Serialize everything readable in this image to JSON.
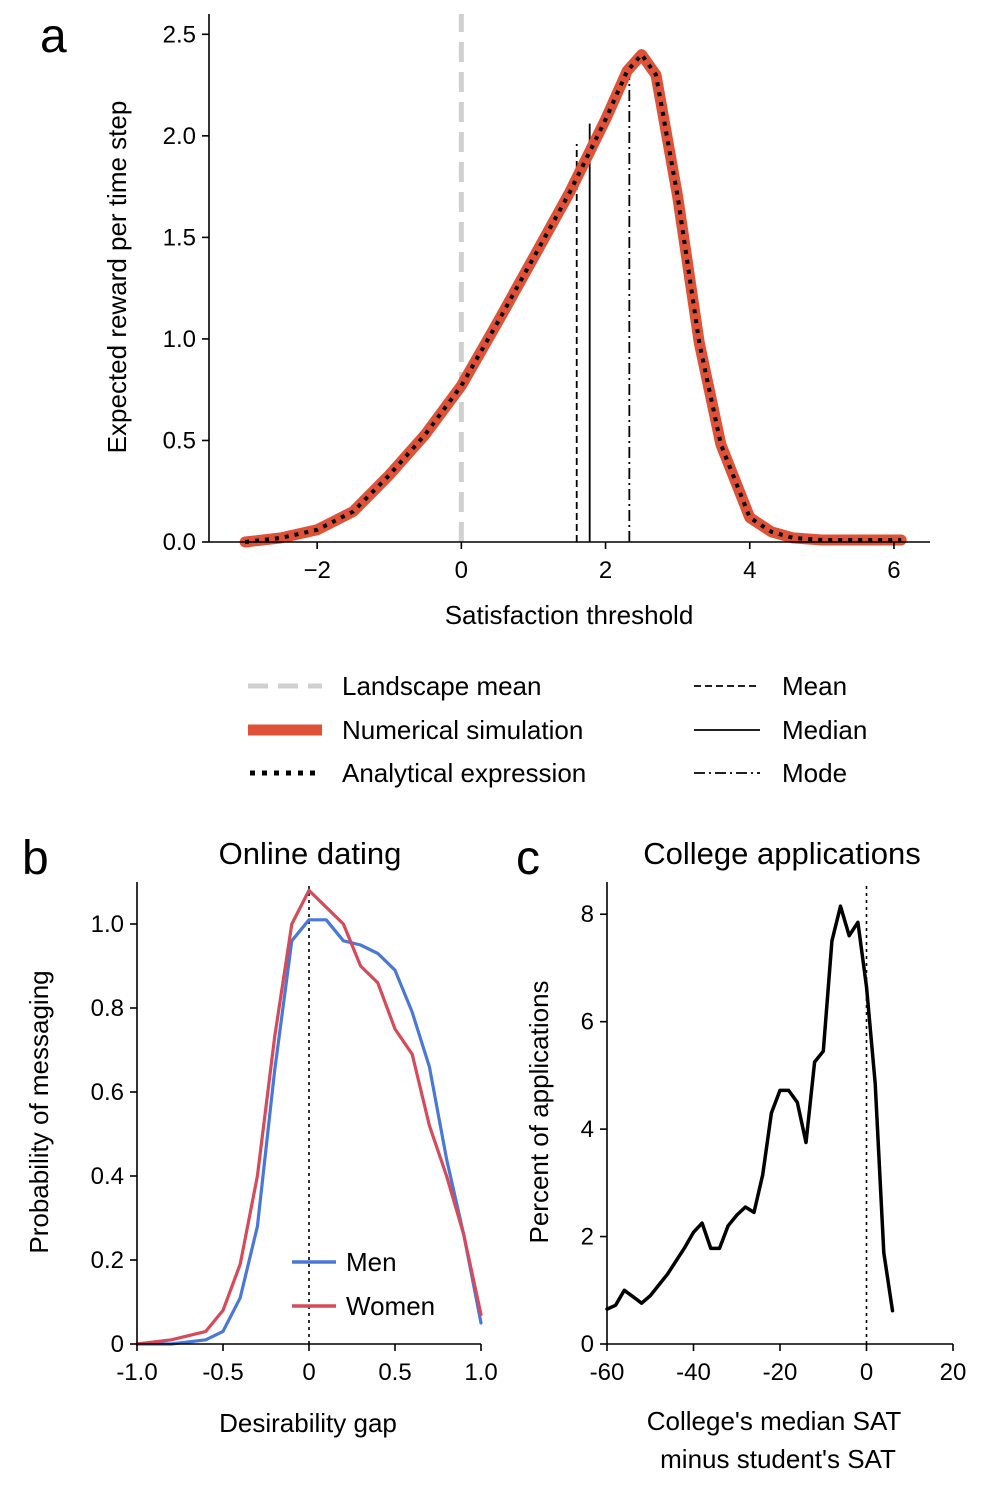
{
  "panels": {
    "a": "a",
    "b": "b",
    "c": "c"
  },
  "chart_data": [
    {
      "panel": "a",
      "type": "line",
      "title": "",
      "xlabel": "Satisfaction threshold",
      "ylabel": "Expected reward per time step",
      "xlim": [
        -3.5,
        6.5
      ],
      "ylim": [
        0,
        2.6
      ],
      "xticks": [
        -2,
        0,
        2,
        4,
        6
      ],
      "xtick_labels": [
        "−2",
        "0",
        "2",
        "4",
        "6"
      ],
      "yticks": [
        0,
        0.5,
        1,
        1.5,
        2,
        2.5
      ],
      "ytick_labels": [
        "0.0",
        "0.5",
        "1.0",
        "1.5",
        "2.0",
        "2.5"
      ],
      "grid": false,
      "series": [
        {
          "name": "Numerical simulation",
          "color": "#e05237",
          "style": "solid-thick",
          "x": [
            -3.0,
            -2.5,
            -2.0,
            -1.5,
            -1.0,
            -0.5,
            0.0,
            0.5,
            1.0,
            1.5,
            2.0,
            2.3,
            2.5,
            2.7,
            3.0,
            3.3,
            3.6,
            4.0,
            4.3,
            4.6,
            5.0,
            6.1
          ],
          "y": [
            0.0,
            0.02,
            0.06,
            0.15,
            0.33,
            0.53,
            0.77,
            1.08,
            1.4,
            1.72,
            2.08,
            2.32,
            2.4,
            2.3,
            1.7,
            0.98,
            0.48,
            0.12,
            0.05,
            0.02,
            0.01,
            0.01
          ]
        },
        {
          "name": "Analytical expression",
          "color": "#000000",
          "style": "dotted",
          "x": [
            -3.0,
            -2.5,
            -2.0,
            -1.5,
            -1.0,
            -0.5,
            0.0,
            0.5,
            1.0,
            1.5,
            2.0,
            2.3,
            2.5,
            2.7,
            3.0,
            3.3,
            3.6,
            4.0,
            4.3,
            4.6,
            5.0,
            6.1
          ],
          "y": [
            0.0,
            0.02,
            0.06,
            0.15,
            0.33,
            0.53,
            0.77,
            1.08,
            1.4,
            1.72,
            2.08,
            2.32,
            2.4,
            2.3,
            1.7,
            0.98,
            0.48,
            0.12,
            0.05,
            0.02,
            0.01,
            0.01
          ]
        }
      ],
      "vlines": [
        {
          "name": "Landscape mean",
          "x": 0,
          "ymax": 2.6,
          "style": "dashed-gray",
          "color": "#d0d0d0"
        },
        {
          "name": "Mean",
          "x": 1.6,
          "ymax": 1.96,
          "style": "dashed"
        },
        {
          "name": "Median",
          "x": 1.78,
          "ymax": 2.06,
          "style": "solid"
        },
        {
          "name": "Mode",
          "x": 2.33,
          "ymax": 2.37,
          "style": "dashdot"
        }
      ],
      "legend": {
        "placement": "below",
        "left": [
          {
            "label": "Landscape mean",
            "style": "dashed-gray"
          },
          {
            "label": "Numerical simulation",
            "style": "solid-thick"
          },
          {
            "label": "Analytical expression",
            "style": "dotted"
          }
        ],
        "right": [
          {
            "label": "Mean",
            "style": "dashed"
          },
          {
            "label": "Median",
            "style": "solid"
          },
          {
            "label": "Mode",
            "style": "dashdot"
          }
        ]
      }
    },
    {
      "panel": "b",
      "type": "line",
      "title": "Online dating",
      "xlabel": "Desirability gap",
      "ylabel": "Probability of messaging",
      "xlim": [
        -1.0,
        1.0
      ],
      "ylim": [
        0,
        1.1
      ],
      "xticks": [
        -1.0,
        -0.5,
        0,
        0.5,
        1.0
      ],
      "xtick_labels": [
        "-1.0",
        "-0.5",
        "0",
        "0.5",
        "1.0"
      ],
      "yticks": [
        0,
        0.2,
        0.4,
        0.6,
        0.8,
        1.0
      ],
      "ytick_labels": [
        "0",
        "0.2",
        "0.4",
        "0.6",
        "0.8",
        "1.0"
      ],
      "vline": {
        "x": 0,
        "style": "dotted"
      },
      "grid": false,
      "series": [
        {
          "name": "Men",
          "color": "#4a78d9",
          "x": [
            -1.0,
            -0.8,
            -0.6,
            -0.5,
            -0.4,
            -0.3,
            -0.2,
            -0.1,
            0.0,
            0.1,
            0.2,
            0.3,
            0.4,
            0.5,
            0.6,
            0.7,
            0.8,
            0.9,
            1.0
          ],
          "y": [
            0.0,
            0.0,
            0.01,
            0.03,
            0.11,
            0.28,
            0.65,
            0.96,
            1.01,
            1.01,
            0.96,
            0.95,
            0.93,
            0.89,
            0.79,
            0.66,
            0.44,
            0.26,
            0.05
          ]
        },
        {
          "name": "Women",
          "color": "#d64a5a",
          "x": [
            -1.0,
            -0.8,
            -0.6,
            -0.5,
            -0.4,
            -0.3,
            -0.2,
            -0.1,
            0.0,
            0.1,
            0.2,
            0.3,
            0.4,
            0.5,
            0.6,
            0.7,
            0.8,
            0.9,
            1.0
          ],
          "y": [
            0.0,
            0.01,
            0.03,
            0.08,
            0.19,
            0.4,
            0.73,
            1.0,
            1.08,
            1.04,
            1.0,
            0.9,
            0.86,
            0.75,
            0.69,
            0.52,
            0.4,
            0.26,
            0.07
          ]
        }
      ],
      "legend": {
        "placement": "lower-center",
        "entries": [
          "Men",
          "Women"
        ]
      }
    },
    {
      "panel": "c",
      "type": "line",
      "title": "College applications",
      "xlabel": "College's median SAT\nminus student's SAT",
      "xlabel_lines": [
        "College's median SAT",
        "minus student's SAT"
      ],
      "ylabel": "Percent of applications",
      "xlim": [
        -60,
        20
      ],
      "ylim": [
        0,
        8.6
      ],
      "xticks": [
        -60,
        -40,
        -20,
        0,
        20
      ],
      "xtick_labels": [
        "-60",
        "-40",
        "-20",
        "0",
        "20"
      ],
      "yticks": [
        0,
        2,
        4,
        6,
        8
      ],
      "ytick_labels": [
        "0",
        "2",
        "4",
        "6",
        "8"
      ],
      "vline": {
        "x": 0,
        "style": "dotted"
      },
      "grid": false,
      "series": [
        {
          "name": "",
          "color": "#000000",
          "x": [
            -60,
            -58,
            -56,
            -54,
            -52,
            -50,
            -48,
            -46,
            -44,
            -42,
            -40,
            -38,
            -36,
            -34,
            -32,
            -30,
            -28,
            -26,
            -24,
            -22,
            -20,
            -18,
            -16,
            -14,
            -12,
            -10,
            -8,
            -6,
            -4,
            -2,
            0,
            2,
            4,
            6
          ],
          "y": [
            0.65,
            0.72,
            1.0,
            0.88,
            0.76,
            0.9,
            1.1,
            1.3,
            1.55,
            1.8,
            2.08,
            2.25,
            1.78,
            1.78,
            2.2,
            2.4,
            2.55,
            2.45,
            3.15,
            4.3,
            4.72,
            4.72,
            4.5,
            3.75,
            5.25,
            5.45,
            7.5,
            8.15,
            7.6,
            7.85,
            6.65,
            4.85,
            1.7,
            0.62
          ]
        }
      ]
    }
  ]
}
